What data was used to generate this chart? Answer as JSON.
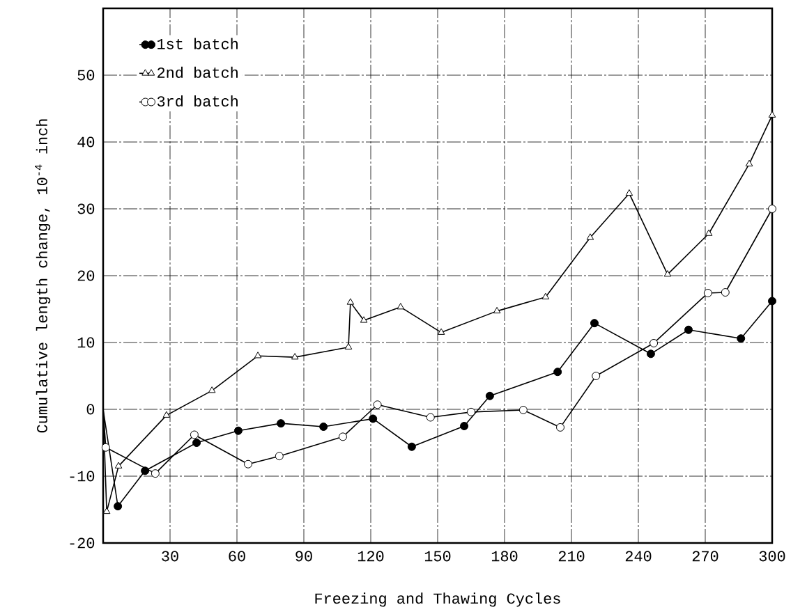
{
  "chart_data": {
    "type": "line",
    "xlabel": "Freezing and Thawing Cycles",
    "ylabel": "Cumulative length change, 10$^{-4}$ inch",
    "xlim": [
      0,
      300
    ],
    "ylim": [
      -20,
      60
    ],
    "xticks": [
      30,
      60,
      90,
      120,
      150,
      180,
      210,
      240,
      270,
      300
    ],
    "yticks": [
      -20,
      -10,
      0,
      10,
      20,
      30,
      40,
      50
    ],
    "grid": true,
    "legend": "top left",
    "line_style": "solid",
    "series": [
      {
        "name": "1st batch",
        "color": "#000000",
        "marker": "circle",
        "x": [
          0,
          6.6,
          18.8,
          41.9,
          60.6,
          79.7,
          98.8,
          121,
          138.4,
          161.9,
          173.4,
          203.8,
          220.3,
          245.6,
          262.5,
          286,
          300
        ],
        "values": [
          0,
          -14.5,
          -9.2,
          -5,
          -3.2,
          -2.1,
          -2.6,
          -1.4,
          -5.6,
          -2.5,
          2,
          5.6,
          12.9,
          8.3,
          11.9,
          10.6,
          16.2
        ]
      },
      {
        "name": "2nd batch",
        "color": "#000000",
        "marker": "triangle",
        "x": [
          0,
          1.6,
          6.9,
          28.4,
          48.8,
          69.4,
          86,
          110,
          110.9,
          116.9,
          133.4,
          151.6,
          176.6,
          198.4,
          218.4,
          235.9,
          253.1,
          271.6,
          289.7,
          300
        ],
        "values": [
          0,
          -15.3,
          -8.5,
          -0.9,
          2.8,
          8,
          7.8,
          9.3,
          16,
          13.3,
          15.3,
          11.5,
          14.7,
          16.8,
          25.7,
          32.3,
          20.2,
          26.3,
          36.7,
          44
        ]
      },
      {
        "name": "3rd batch",
        "color": "#000000",
        "marker": "circle",
        "x": [
          0,
          1.2,
          23.4,
          40.9,
          65,
          79,
          107.5,
          123,
          146.8,
          165,
          188.4,
          205,
          221,
          246.9,
          271.2,
          279,
          300
        ],
        "values": [
          0,
          -5.7,
          -9.6,
          -3.8,
          -8.2,
          -7,
          -4.1,
          0.7,
          -1.2,
          -0.4,
          -0.1,
          -2.7,
          5,
          9.9,
          17.4,
          17.5,
          30
        ]
      }
    ]
  }
}
